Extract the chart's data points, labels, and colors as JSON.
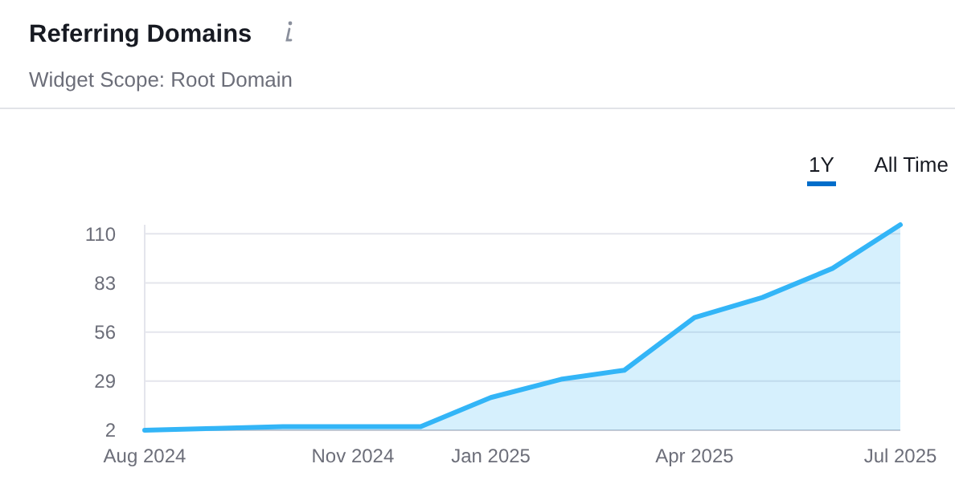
{
  "chart_data": {
    "type": "area",
    "title": "Referring Domains",
    "subtitle": "Widget Scope: Root Domain",
    "annotations": [
      "1Y",
      "All Time"
    ],
    "x": [
      "2024-08",
      "2024-09",
      "2024-10",
      "2024-11",
      "2024-12",
      "2025-01",
      "2025-02",
      "2025-03",
      "2025-04",
      "2025-05",
      "2025-06",
      "2025-07"
    ],
    "series": [
      {
        "color": "#33b5f7",
        "values": [
          2,
          3,
          4,
          4,
          4,
          20,
          30,
          35,
          64,
          75,
          91,
          115
        ]
      }
    ],
    "xlim": [
      "2024-08",
      "2025-07"
    ],
    "xticks": [
      {
        "value": "2024-08",
        "label": "Aug 2024"
      },
      {
        "value": "2024-11",
        "label": "Nov 2024"
      },
      {
        "value": "2025-01",
        "label": "Jan 2025"
      },
      {
        "value": "2025-04",
        "label": "Apr 2025"
      },
      {
        "value": "2025-07",
        "label": "Jul 2025"
      }
    ],
    "ylim": [
      2,
      115
    ],
    "yticks": [
      2,
      29,
      56,
      83,
      110
    ],
    "grid": "y",
    "marker": "none",
    "line_style": "solid"
  }
}
